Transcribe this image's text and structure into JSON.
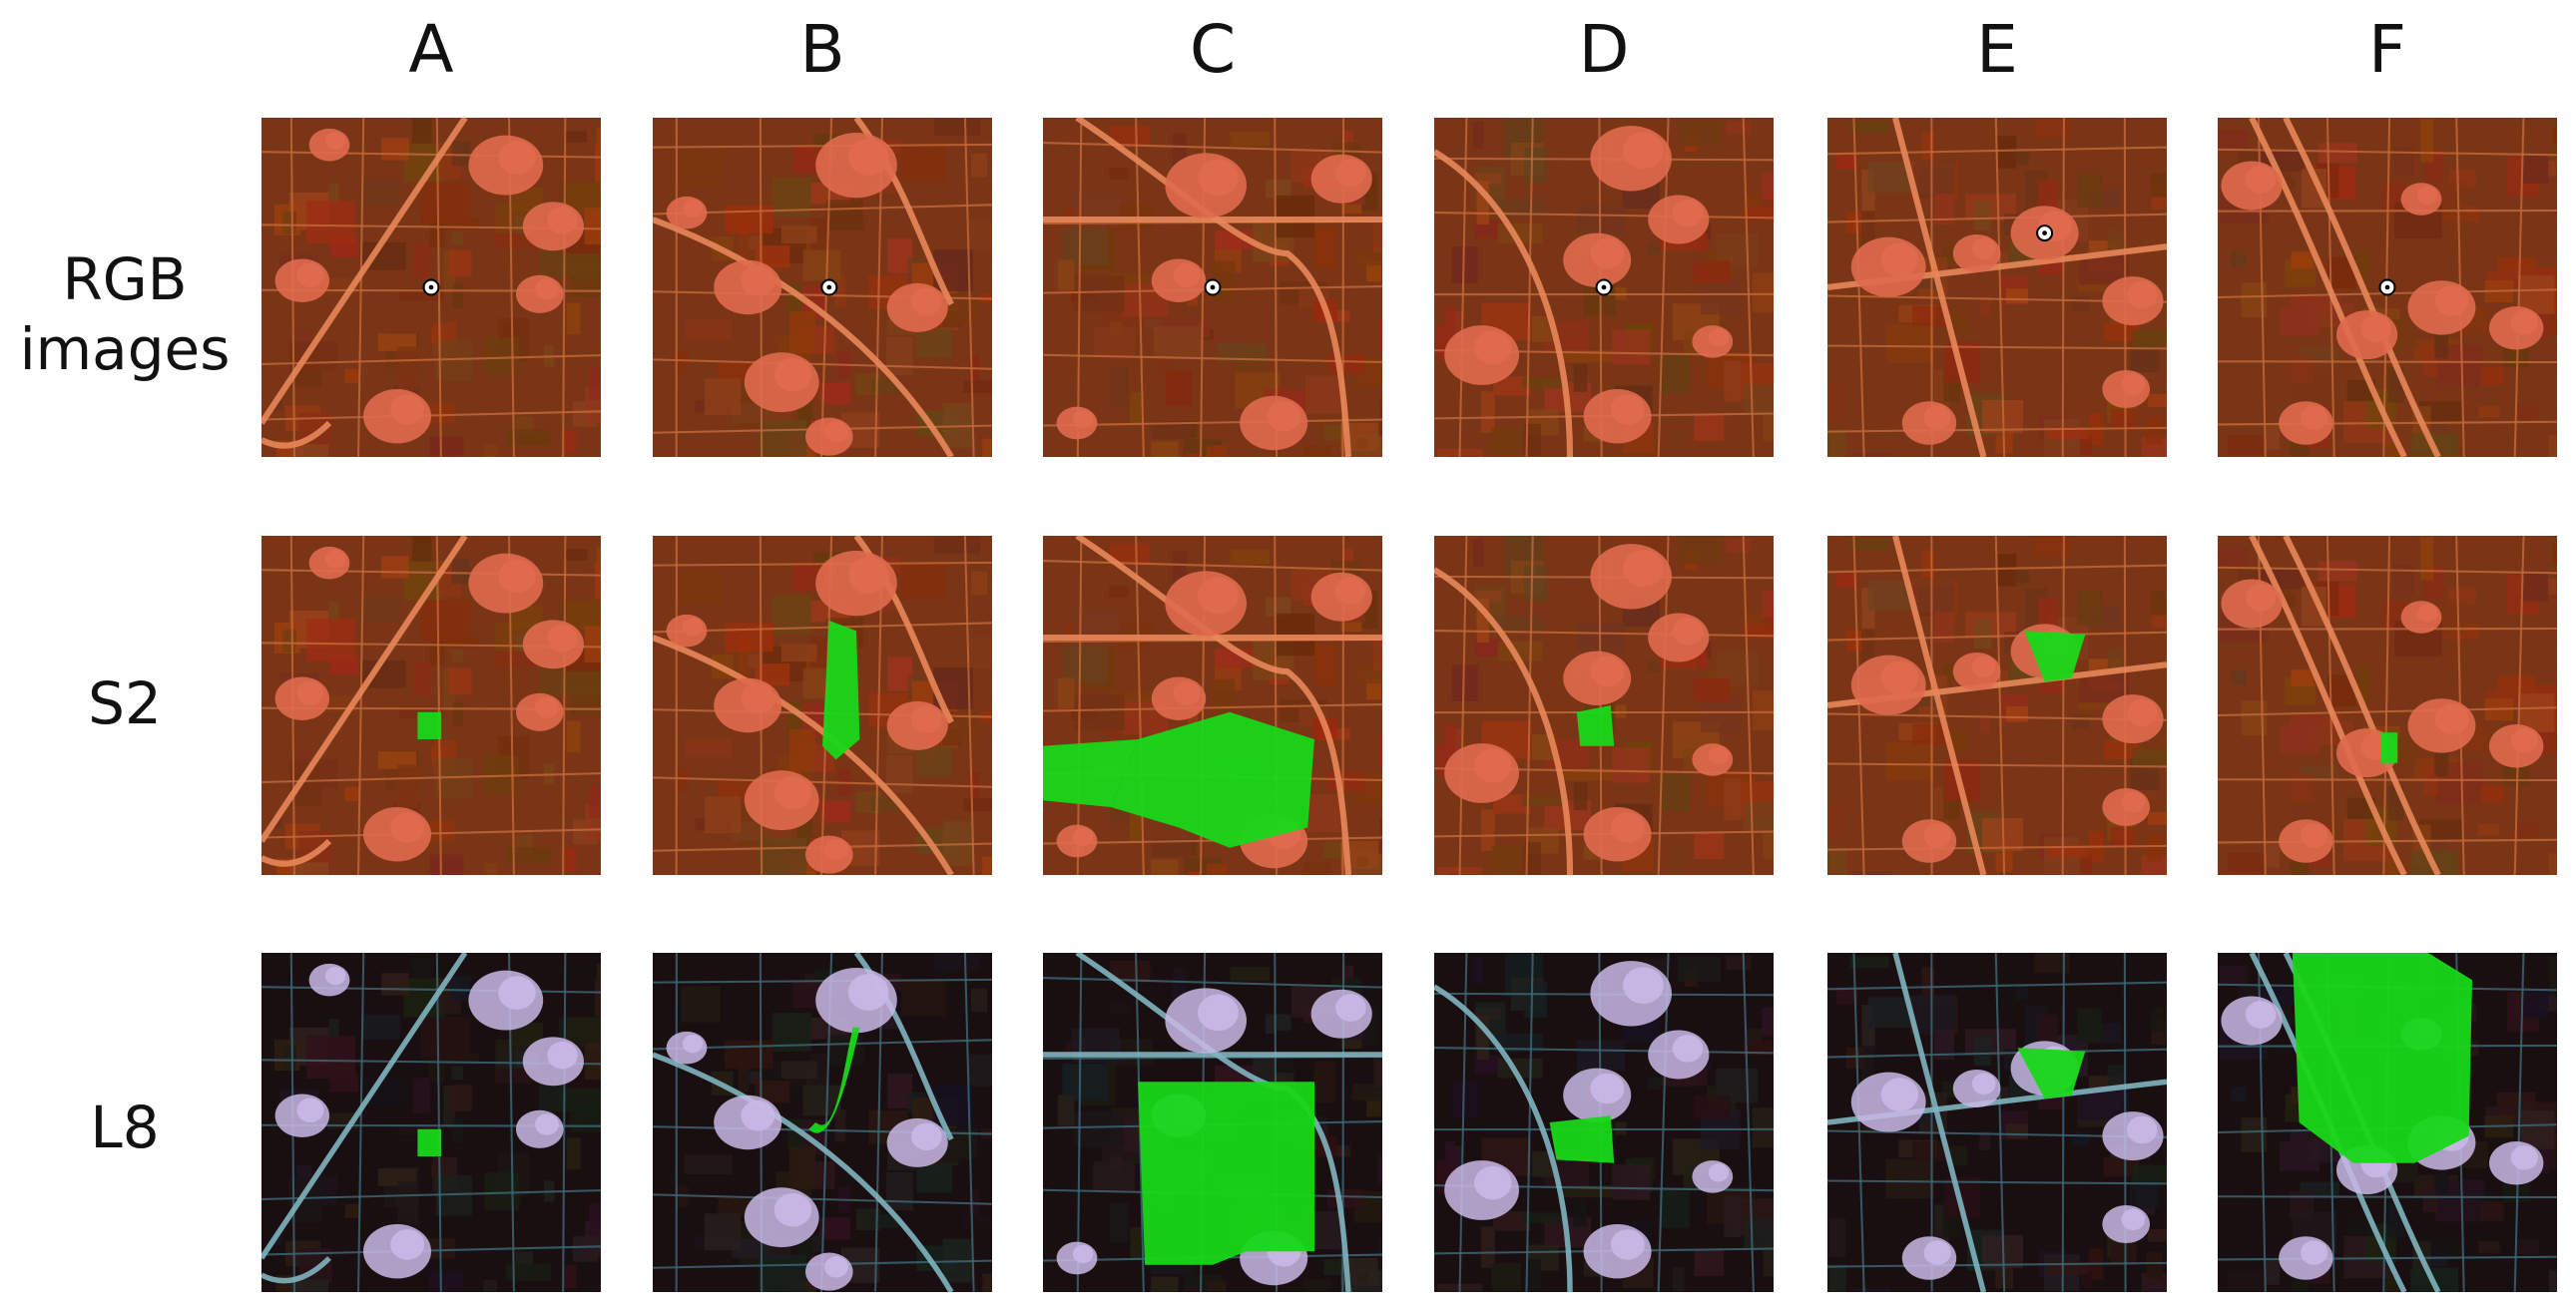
{
  "columns": [
    "A",
    "B",
    "C",
    "D",
    "E",
    "F"
  ],
  "rows": [
    "RGB\nimages",
    "S2",
    "L8"
  ],
  "colors": {
    "rgb_background": "#7a3516",
    "rgb_road": "#e8875a",
    "rgb_village": "#e06a4e",
    "l8_background": "#1a0f10",
    "l8_road": "#7fb4c0",
    "l8_village": "#c9b8e6",
    "detection": "#18d818",
    "marker": "#ffffff"
  }
}
